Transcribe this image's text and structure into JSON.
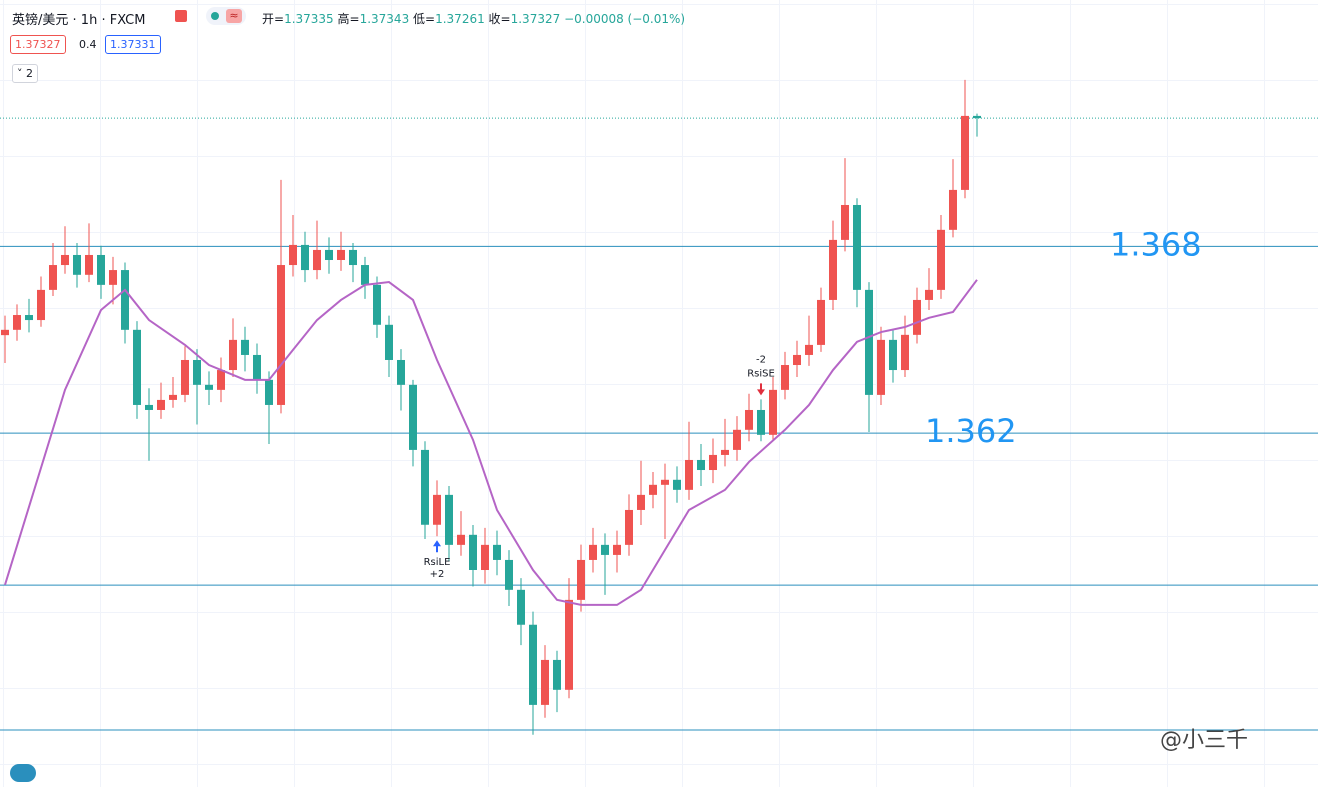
{
  "header": {
    "symbol": "英镑/美元",
    "interval": "1h",
    "source": "FXCM",
    "ohlc_labels": [
      "开=",
      "高=",
      "低=",
      "收="
    ],
    "change": "−0.00008 (−0.01%)",
    "spread": 0.4,
    "ask": 1.37331,
    "indicator_count": 2
  },
  "chart_data": {
    "type": "candlestick",
    "open": [
      1.3655,
      1.36569,
      1.36622,
      1.36604,
      1.36712,
      1.36801,
      1.36837,
      1.36766,
      1.36837,
      1.3673,
      1.36783,
      1.36569,
      1.363,
      1.36282,
      1.36318,
      1.36336,
      1.36461,
      1.36372,
      1.36354,
      1.36425,
      1.36533,
      1.36479,
      1.3639,
      1.363,
      1.36801,
      1.36873,
      1.36783,
      1.36855,
      1.36819,
      1.36855,
      1.36801,
      1.3673,
      1.36587,
      1.36461,
      1.36372,
      1.36139,
      1.35871,
      1.35978,
      1.35799,
      1.35835,
      1.35709,
      1.35799,
      1.35745,
      1.35638,
      1.35513,
      1.35226,
      1.35387,
      1.3528,
      1.35602,
      1.35745,
      1.35799,
      1.35763,
      1.35799,
      1.35924,
      1.35978,
      1.36014,
      1.36032,
      1.35996,
      1.36103,
      1.36067,
      1.36121,
      1.36139,
      1.36211,
      1.36282,
      1.36193,
      1.36354,
      1.36443,
      1.36479,
      1.36515,
      1.36676,
      1.36891,
      1.37016,
      1.36712,
      1.36336,
      1.36533,
      1.36425,
      1.36551,
      1.36676,
      1.36712,
      1.36927,
      1.3707,
      1.37335
    ],
    "high": [
      1.3662,
      1.3666,
      1.3668,
      1.3676,
      1.3688,
      1.3694,
      1.3688,
      1.3695,
      1.3687,
      1.3683,
      1.3681,
      1.366,
      1.3636,
      1.3638,
      1.364,
      1.3651,
      1.365,
      1.3642,
      1.3647,
      1.3661,
      1.3658,
      1.3652,
      1.3642,
      1.37106,
      1.3698,
      1.3692,
      1.3696,
      1.369,
      1.3692,
      1.3688,
      1.3683,
      1.3676,
      1.3662,
      1.365,
      1.3639,
      1.3617,
      1.3603,
      1.3601,
      1.3592,
      1.3587,
      1.3586,
      1.3585,
      1.3578,
      1.3568,
      1.3556,
      1.3544,
      1.3542,
      1.3568,
      1.358,
      1.3586,
      1.3584,
      1.3585,
      1.3598,
      1.361,
      1.3606,
      1.3609,
      1.3608,
      1.3624,
      1.3616,
      1.3618,
      1.3625,
      1.3626,
      1.3634,
      1.3632,
      1.364,
      1.3649,
      1.3653,
      1.3662,
      1.3672,
      1.3696,
      1.37184,
      1.3704,
      1.3674,
      1.3658,
      1.3657,
      1.3662,
      1.3672,
      1.3679,
      1.3698,
      1.3718,
      1.37464,
      1.37343
    ],
    "low": [
      1.3645,
      1.3653,
      1.3656,
      1.3658,
      1.3669,
      1.3677,
      1.3672,
      1.3674,
      1.3668,
      1.3666,
      1.3652,
      1.3625,
      1.361,
      1.3625,
      1.3629,
      1.3631,
      1.3623,
      1.363,
      1.3631,
      1.364,
      1.3642,
      1.3634,
      1.3616,
      1.3627,
      1.3676,
      1.3674,
      1.3675,
      1.3677,
      1.3678,
      1.3674,
      1.3668,
      1.3654,
      1.364,
      1.3628,
      1.3608,
      1.3582,
      1.3583,
      1.3574,
      1.3576,
      1.3565,
      1.3566,
      1.3569,
      1.3558,
      1.3544,
      1.35119,
      1.3518,
      1.352,
      1.3525,
      1.3556,
      1.357,
      1.3562,
      1.357,
      1.3576,
      1.3587,
      1.3593,
      1.3582,
      1.3595,
      1.3596,
      1.3601,
      1.3602,
      1.3608,
      1.361,
      1.3617,
      1.3617,
      1.3617,
      1.3632,
      1.364,
      1.3644,
      1.3649,
      1.3664,
      1.3685,
      1.3665,
      1.36203,
      1.363,
      1.3638,
      1.364,
      1.3652,
      1.3664,
      1.3668,
      1.369,
      1.3704,
      1.37261
    ],
    "close": [
      1.36569,
      1.36622,
      1.36604,
      1.36712,
      1.36801,
      1.36837,
      1.36766,
      1.36837,
      1.3673,
      1.36783,
      1.36569,
      1.363,
      1.36282,
      1.36318,
      1.36336,
      1.36461,
      1.36372,
      1.36354,
      1.36425,
      1.36533,
      1.36479,
      1.3639,
      1.363,
      1.36801,
      1.36873,
      1.36783,
      1.36855,
      1.36819,
      1.36855,
      1.36801,
      1.3673,
      1.36587,
      1.36461,
      1.36372,
      1.36139,
      1.35871,
      1.35978,
      1.35799,
      1.35835,
      1.35709,
      1.35799,
      1.35745,
      1.35638,
      1.35513,
      1.35226,
      1.35387,
      1.3528,
      1.35602,
      1.35745,
      1.35799,
      1.35763,
      1.35799,
      1.35924,
      1.35978,
      1.36014,
      1.36032,
      1.35996,
      1.36103,
      1.36067,
      1.36121,
      1.36139,
      1.36211,
      1.36282,
      1.36193,
      1.36354,
      1.36443,
      1.36479,
      1.36515,
      1.36676,
      1.36891,
      1.37016,
      1.36712,
      1.36336,
      1.36533,
      1.36425,
      1.36551,
      1.36676,
      1.36712,
      1.36927,
      1.3707,
      1.37335,
      1.37327
    ],
    "colors": {
      "up": "#ef5350",
      "down": "#26a69a"
    },
    "ylim": [
      1.34932,
      1.3775
    ],
    "moving_average": {
      "color": "#b565c6",
      "x": [
        0,
        5,
        8,
        10,
        12,
        15,
        17,
        20,
        22,
        24,
        26,
        28,
        30,
        32,
        34,
        36,
        39,
        41,
        44,
        46,
        48,
        51,
        53,
        55,
        57,
        60,
        62,
        65,
        67,
        69,
        71,
        73,
        75,
        77,
        79,
        81
      ],
      "values": [
        1.35656,
        1.36354,
        1.3664,
        1.36712,
        1.36604,
        1.36515,
        1.36443,
        1.3639,
        1.3639,
        1.36497,
        1.36604,
        1.36676,
        1.3673,
        1.3674,
        1.36676,
        1.36461,
        1.36175,
        1.35924,
        1.35709,
        1.35602,
        1.35584,
        1.35584,
        1.35638,
        1.35781,
        1.35924,
        1.35996,
        1.36096,
        1.36211,
        1.363,
        1.36425,
        1.36526,
        1.36561,
        1.36579,
        1.36612,
        1.36633,
        1.36748
      ]
    },
    "levels": {
      "color": "#2a8fbd",
      "values": [
        1.36868,
        1.36199,
        1.35655,
        1.35136
      ]
    },
    "annotations": [
      "1.368",
      "1.362"
    ],
    "signals": [
      {
        "name": "RsiLE",
        "qty": "+2",
        "bar": 36
      },
      {
        "name": "RsiSE",
        "qty": "-2",
        "bar": 63
      }
    ]
  },
  "watermark": "@小三千"
}
